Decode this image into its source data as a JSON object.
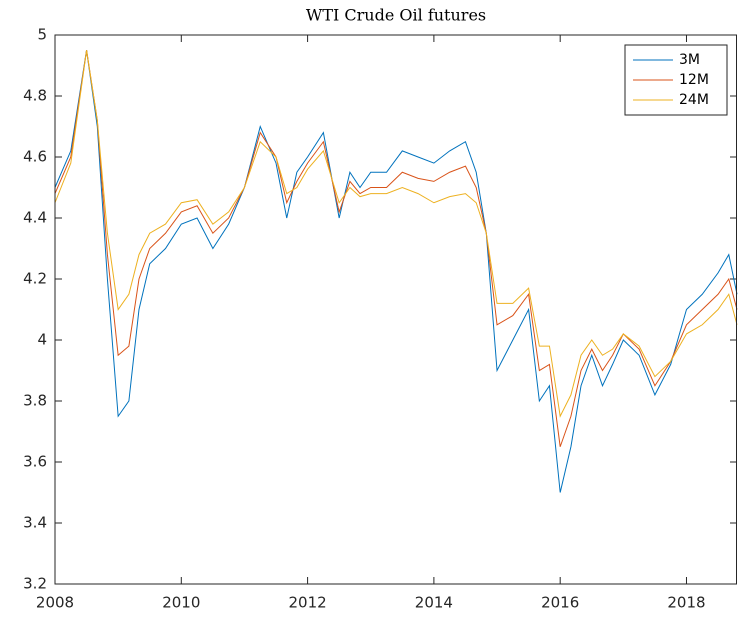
{
  "chart_data": {
    "type": "line",
    "title": "WTI Crude Oil futures",
    "x": [
      2008.0,
      2008.25,
      2008.5,
      2008.67,
      2008.83,
      2009.0,
      2009.17,
      2009.33,
      2009.5,
      2009.75,
      2010.0,
      2010.25,
      2010.5,
      2010.75,
      2011.0,
      2011.25,
      2011.5,
      2011.67,
      2011.83,
      2012.0,
      2012.25,
      2012.5,
      2012.67,
      2012.83,
      2013.0,
      2013.25,
      2013.5,
      2013.75,
      2014.0,
      2014.25,
      2014.5,
      2014.67,
      2014.83,
      2015.0,
      2015.25,
      2015.5,
      2015.67,
      2015.83,
      2016.0,
      2016.17,
      2016.33,
      2016.5,
      2016.67,
      2016.83,
      2017.0,
      2017.25,
      2017.5,
      2017.75,
      2018.0,
      2018.25,
      2018.5,
      2018.67,
      2018.8
    ],
    "series": [
      {
        "name": "3M",
        "color": "#0072bd",
        "values": [
          4.5,
          4.62,
          4.95,
          4.7,
          4.2,
          3.75,
          3.8,
          4.1,
          4.25,
          4.3,
          4.38,
          4.4,
          4.3,
          4.38,
          4.5,
          4.7,
          4.58,
          4.4,
          4.55,
          4.6,
          4.68,
          4.4,
          4.55,
          4.5,
          4.55,
          4.55,
          4.62,
          4.6,
          4.58,
          4.62,
          4.65,
          4.55,
          4.35,
          3.9,
          4.0,
          4.1,
          3.8,
          3.85,
          3.5,
          3.65,
          3.85,
          3.95,
          3.85,
          3.92,
          4.0,
          3.95,
          3.82,
          3.92,
          4.1,
          4.15,
          4.22,
          4.28,
          4.15
        ]
      },
      {
        "name": "12M",
        "color": "#d95319",
        "values": [
          4.48,
          4.6,
          4.95,
          4.72,
          4.28,
          3.95,
          3.98,
          4.2,
          4.3,
          4.35,
          4.42,
          4.44,
          4.35,
          4.4,
          4.5,
          4.68,
          4.6,
          4.45,
          4.52,
          4.58,
          4.65,
          4.42,
          4.52,
          4.48,
          4.5,
          4.5,
          4.55,
          4.53,
          4.52,
          4.55,
          4.57,
          4.5,
          4.35,
          4.05,
          4.08,
          4.15,
          3.9,
          3.92,
          3.65,
          3.75,
          3.9,
          3.97,
          3.9,
          3.95,
          4.02,
          3.97,
          3.85,
          3.93,
          4.05,
          4.1,
          4.15,
          4.2,
          4.1
        ]
      },
      {
        "name": "24M",
        "color": "#edb120",
        "values": [
          4.45,
          4.58,
          4.95,
          4.72,
          4.35,
          4.1,
          4.15,
          4.28,
          4.35,
          4.38,
          4.45,
          4.46,
          4.38,
          4.42,
          4.5,
          4.65,
          4.6,
          4.48,
          4.5,
          4.56,
          4.62,
          4.45,
          4.5,
          4.47,
          4.48,
          4.48,
          4.5,
          4.48,
          4.45,
          4.47,
          4.48,
          4.45,
          4.35,
          4.12,
          4.12,
          4.17,
          3.98,
          3.98,
          3.75,
          3.82,
          3.95,
          4.0,
          3.95,
          3.97,
          4.02,
          3.98,
          3.88,
          3.93,
          4.02,
          4.05,
          4.1,
          4.15,
          4.05
        ]
      }
    ],
    "xlim": [
      2008,
      2018.8
    ],
    "xticks": [
      2008,
      2010,
      2012,
      2014,
      2016,
      2018
    ],
    "ylim": [
      3.2,
      5
    ],
    "yticks": [
      3.2,
      3.4,
      3.6,
      3.8,
      4,
      4.2,
      4.4,
      4.6,
      4.8,
      5
    ],
    "grid": false,
    "legend": "northeast"
  }
}
